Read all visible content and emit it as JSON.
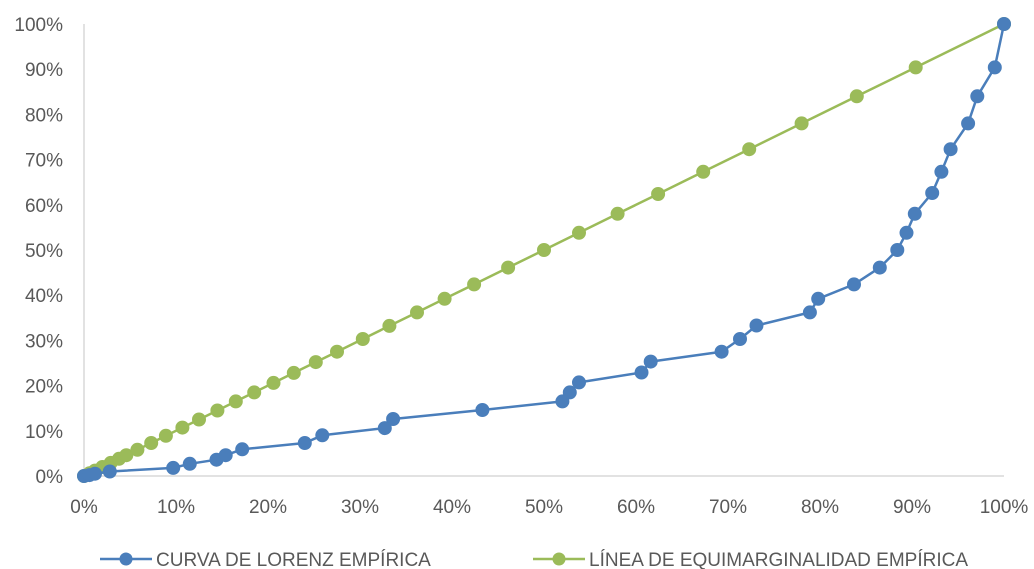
{
  "chart_data": {
    "type": "line",
    "title": "",
    "xlabel": "",
    "ylabel": "",
    "xlim": [
      0,
      100
    ],
    "ylim": [
      0,
      100
    ],
    "x_ticks": [
      "0%",
      "10%",
      "20%",
      "30%",
      "40%",
      "50%",
      "60%",
      "70%",
      "80%",
      "90%",
      "100%"
    ],
    "y_ticks": [
      "0%",
      "10%",
      "20%",
      "30%",
      "40%",
      "50%",
      "60%",
      "70%",
      "80%",
      "90%",
      "100%"
    ],
    "grid": false,
    "legend_position": "bottom",
    "series": [
      {
        "name": "CURVA DE LORENZ EMPÍRICA",
        "color": "#4a7ebb",
        "points": [
          [
            0,
            0
          ],
          [
            0.6,
            0.2
          ],
          [
            1.2,
            0.5
          ],
          [
            2.8,
            1.0
          ],
          [
            9.7,
            1.8
          ],
          [
            11.5,
            2.7
          ],
          [
            14.4,
            3.6
          ],
          [
            15.4,
            4.6
          ],
          [
            17.2,
            5.9
          ],
          [
            24.0,
            7.3
          ],
          [
            25.9,
            9.0
          ],
          [
            32.7,
            10.6
          ],
          [
            33.6,
            12.6
          ],
          [
            43.3,
            14.6
          ],
          [
            52.0,
            16.5
          ],
          [
            52.8,
            18.5
          ],
          [
            53.8,
            20.7
          ],
          [
            60.6,
            22.9
          ],
          [
            61.6,
            25.3
          ],
          [
            69.3,
            27.5
          ],
          [
            71.3,
            30.3
          ],
          [
            73.1,
            33.3
          ],
          [
            78.9,
            36.2
          ],
          [
            79.8,
            39.2
          ],
          [
            83.7,
            42.4
          ],
          [
            86.5,
            46.1
          ],
          [
            88.4,
            50.0
          ],
          [
            89.4,
            53.8
          ],
          [
            90.3,
            58.0
          ],
          [
            92.2,
            62.6
          ],
          [
            93.2,
            67.3
          ],
          [
            94.2,
            72.3
          ],
          [
            96.1,
            78.0
          ],
          [
            97.1,
            84.0
          ],
          [
            99.0,
            90.4
          ],
          [
            100,
            100
          ]
        ]
      },
      {
        "name": "LÍNEA DE EQUIMARGINALIDAD EMPÍRICA",
        "color": "#9bbb59",
        "points": [
          [
            0,
            0
          ],
          [
            0.6,
            0.6
          ],
          [
            1.2,
            1.2
          ],
          [
            2.0,
            2.0
          ],
          [
            2.9,
            2.9
          ],
          [
            3.8,
            3.8
          ],
          [
            4.6,
            4.6
          ],
          [
            5.8,
            5.8
          ],
          [
            7.3,
            7.3
          ],
          [
            8.9,
            8.9
          ],
          [
            10.7,
            10.7
          ],
          [
            12.5,
            12.5
          ],
          [
            14.5,
            14.5
          ],
          [
            16.5,
            16.5
          ],
          [
            18.5,
            18.5
          ],
          [
            20.6,
            20.6
          ],
          [
            22.8,
            22.8
          ],
          [
            25.2,
            25.2
          ],
          [
            27.5,
            27.5
          ],
          [
            30.3,
            30.3
          ],
          [
            33.2,
            33.2
          ],
          [
            36.2,
            36.2
          ],
          [
            39.2,
            39.2
          ],
          [
            42.4,
            42.4
          ],
          [
            46.1,
            46.1
          ],
          [
            50.0,
            50.0
          ],
          [
            53.8,
            53.8
          ],
          [
            58.0,
            58.0
          ],
          [
            62.4,
            62.4
          ],
          [
            67.3,
            67.3
          ],
          [
            72.3,
            72.3
          ],
          [
            78.0,
            78.0
          ],
          [
            84.0,
            84.0
          ],
          [
            90.4,
            90.4
          ],
          [
            100,
            100
          ]
        ]
      }
    ]
  }
}
